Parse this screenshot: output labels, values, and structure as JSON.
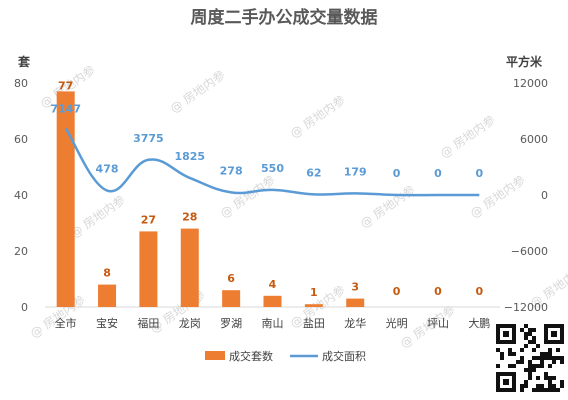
{
  "chart_data": {
    "type": "bar",
    "title": "周度二手办公成交量数据",
    "categories": [
      "全市",
      "宝安",
      "福田",
      "龙岗",
      "罗湖",
      "南山",
      "盐田",
      "龙华",
      "光明",
      "坪山",
      "大鹏"
    ],
    "left_axis": {
      "unit": "套",
      "min": 0,
      "max": 80,
      "ticks": [
        0,
        20,
        40,
        60,
        80
      ]
    },
    "right_axis": {
      "unit": "平方米",
      "min": -12000,
      "max": 12000,
      "ticks": [
        -12000,
        -6000,
        0,
        6000,
        12000
      ]
    },
    "series": [
      {
        "name": "成交套数",
        "type": "bar",
        "axis": "left",
        "color": "#ed7d31",
        "values": [
          77,
          8,
          27,
          28,
          6,
          4,
          1,
          3,
          0,
          0,
          0
        ]
      },
      {
        "name": "成交面积",
        "type": "line",
        "axis": "right",
        "color": "#5b9bd5",
        "values": [
          7147,
          478,
          3775,
          1825,
          278,
          550,
          62,
          179,
          0,
          0,
          0
        ]
      }
    ],
    "legend_position": "bottom",
    "grid": false
  },
  "watermark": "@ 房地内参"
}
